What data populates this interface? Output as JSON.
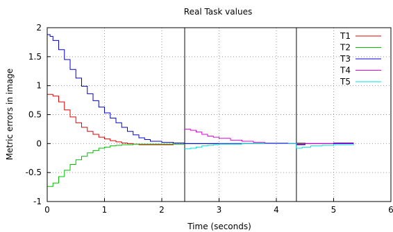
{
  "chart_data": {
    "type": "line",
    "title": "Real Task values",
    "xlabel": "Time (seconds)",
    "ylabel": "Metric errors in image",
    "xlim": [
      0,
      6
    ],
    "ylim": [
      -1,
      2
    ],
    "xticks": [
      "0",
      "1",
      "2",
      "3",
      "4",
      "5",
      "6"
    ],
    "yticks": [
      "-1",
      "-0.5",
      "0",
      "0.5",
      "1",
      "1.5",
      "2"
    ],
    "xtick_values": [
      0,
      1,
      2,
      3,
      4,
      5,
      6
    ],
    "ytick_values": [
      -1,
      -0.5,
      0,
      0.5,
      1,
      1.5,
      2
    ],
    "grid": true,
    "legend_position": "top-right",
    "event_lines": [
      2.4,
      4.35
    ],
    "series": [
      {
        "name": "T1",
        "color": "#e00000",
        "x": [
          0,
          0.1,
          0.2,
          0.3,
          0.4,
          0.5,
          0.6,
          0.7,
          0.8,
          0.9,
          1.0,
          1.1,
          1.2,
          1.3,
          1.4,
          1.5,
          1.6,
          1.8,
          2.0,
          2.2,
          2.4,
          2.6,
          2.8,
          3.0,
          3.5,
          4.0,
          4.35,
          4.5,
          5.0,
          5.35
        ],
        "y": [
          0.85,
          0.82,
          0.72,
          0.58,
          0.46,
          0.36,
          0.28,
          0.21,
          0.16,
          0.11,
          0.08,
          0.05,
          0.03,
          0.01,
          0.0,
          -0.01,
          -0.02,
          -0.02,
          -0.02,
          -0.01,
          0.0,
          0.0,
          0.0,
          0.0,
          0.0,
          0.0,
          -0.01,
          0.0,
          0.0,
          0.0
        ]
      },
      {
        "name": "T2",
        "color": "#00c000",
        "x": [
          0,
          0.1,
          0.2,
          0.3,
          0.4,
          0.5,
          0.6,
          0.7,
          0.8,
          0.9,
          1.0,
          1.1,
          1.2,
          1.3,
          1.4,
          1.5,
          1.6,
          1.8,
          2.0,
          2.2,
          2.4,
          2.6,
          2.8,
          3.0,
          3.5,
          4.0,
          4.35,
          4.5,
          5.0,
          5.35
        ],
        "y": [
          -0.74,
          -0.68,
          -0.57,
          -0.46,
          -0.36,
          -0.28,
          -0.22,
          -0.16,
          -0.12,
          -0.08,
          -0.06,
          -0.04,
          -0.03,
          -0.02,
          -0.02,
          -0.01,
          -0.01,
          -0.01,
          -0.01,
          -0.01,
          0.0,
          0.0,
          0.0,
          0.0,
          0.0,
          0.0,
          0.0,
          0.0,
          0.0,
          0.0
        ]
      },
      {
        "name": "T3",
        "color": "#0000d0",
        "x": [
          0,
          0.05,
          0.1,
          0.2,
          0.3,
          0.4,
          0.5,
          0.6,
          0.7,
          0.8,
          0.9,
          1.0,
          1.1,
          1.2,
          1.3,
          1.4,
          1.5,
          1.6,
          1.7,
          1.8,
          2.0,
          2.2,
          2.4,
          2.6,
          2.8,
          3.0,
          3.5,
          4.0,
          4.35,
          4.5,
          5.0,
          5.35
        ],
        "y": [
          1.88,
          1.85,
          1.78,
          1.62,
          1.45,
          1.28,
          1.13,
          0.99,
          0.86,
          0.74,
          0.63,
          0.53,
          0.44,
          0.36,
          0.28,
          0.21,
          0.15,
          0.1,
          0.07,
          0.04,
          0.02,
          0.01,
          0.0,
          0.0,
          0.0,
          0.0,
          0.0,
          0.0,
          -0.02,
          0.0,
          0.01,
          0.01
        ]
      },
      {
        "name": "T4",
        "color": "#e000e0",
        "x": [
          2.4,
          2.5,
          2.6,
          2.7,
          2.8,
          2.9,
          3.0,
          3.2,
          3.4,
          3.6,
          3.8,
          4.0,
          4.2,
          4.35,
          4.5,
          4.7,
          5.0,
          5.35
        ],
        "y": [
          0.25,
          0.23,
          0.2,
          0.16,
          0.13,
          0.11,
          0.09,
          0.06,
          0.04,
          0.02,
          0.01,
          0.01,
          0.0,
          0.01,
          0.0,
          0.0,
          0.0,
          0.0
        ]
      },
      {
        "name": "T5",
        "color": "#00e0e0",
        "x": [
          2.4,
          2.5,
          2.6,
          2.7,
          2.8,
          2.9,
          3.0,
          3.2,
          3.4,
          3.6,
          3.8,
          4.0,
          4.2,
          4.35,
          4.45,
          4.6,
          4.8,
          5.0,
          5.2,
          5.35
        ],
        "y": [
          -0.09,
          -0.08,
          -0.06,
          -0.04,
          -0.03,
          -0.02,
          -0.01,
          -0.01,
          0.0,
          0.0,
          0.0,
          0.0,
          0.0,
          -0.08,
          -0.06,
          -0.04,
          -0.03,
          -0.02,
          -0.02,
          -0.01
        ]
      }
    ]
  }
}
